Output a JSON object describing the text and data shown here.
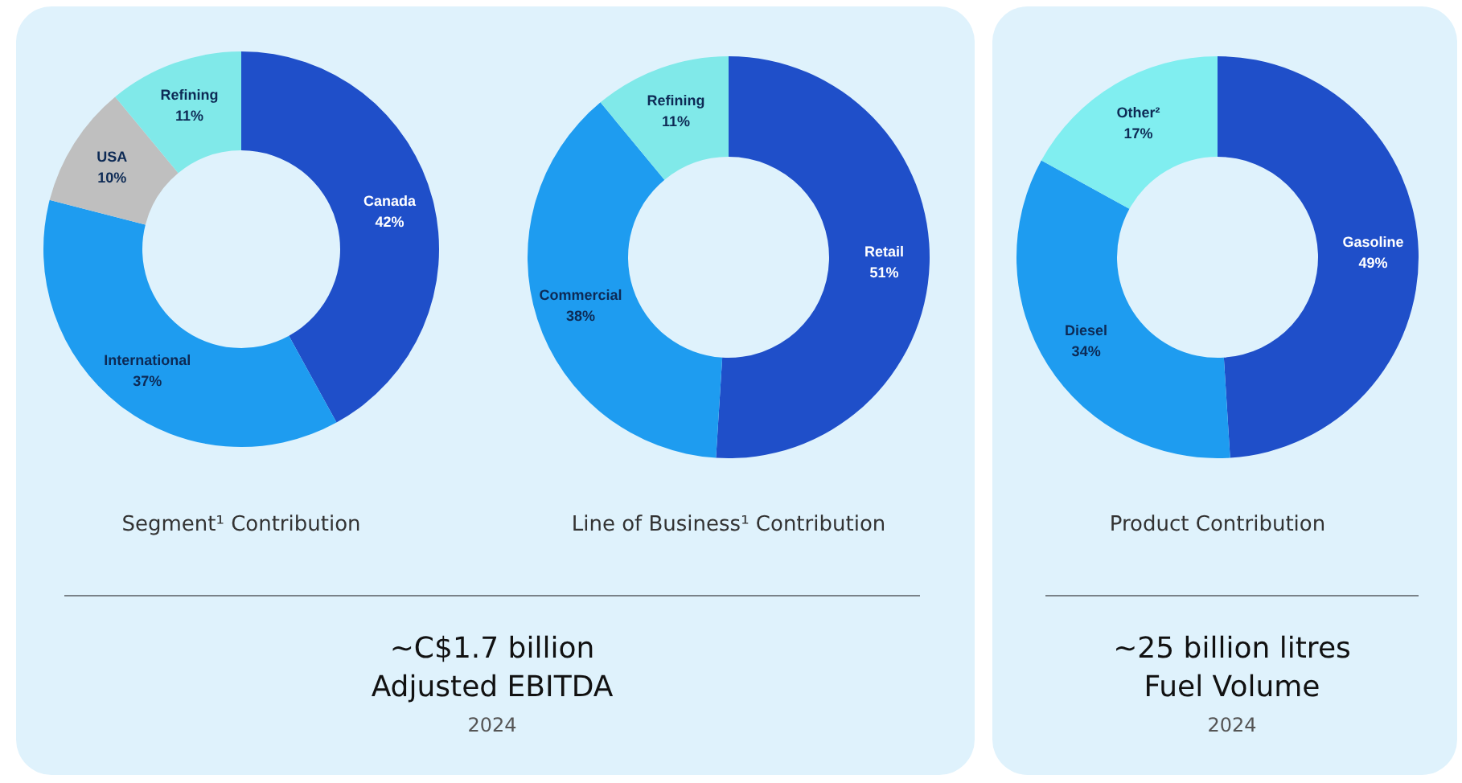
{
  "chart_data": [
    {
      "type": "donut",
      "title": "Segment¹ Contribution",
      "categories": [
        "Canada",
        "International",
        "USA",
        "Refining"
      ],
      "values": [
        42,
        37,
        10,
        11
      ],
      "colors": [
        "#1f4fc9",
        "#1e9cf0",
        "#bfbfbf",
        "#80e9e9"
      ],
      "value_labels": [
        "42%",
        "37%",
        "10%",
        "11%"
      ]
    },
    {
      "type": "donut",
      "title": "Line of Business¹ Contribution",
      "categories": [
        "Retail",
        "Commercial",
        "Refining"
      ],
      "values": [
        51,
        38,
        11
      ],
      "colors": [
        "#1f4fc9",
        "#1e9cf0",
        "#80e9e9"
      ],
      "value_labels": [
        "51%",
        "38%",
        "11%"
      ]
    },
    {
      "type": "other",
      "title": "~C$1.7 billion",
      "subtitle": "Adjusted EBITDA",
      "annotations": [
        "2024"
      ]
    },
    {
      "type": "donut",
      "title": "Product Contribution",
      "categories": [
        "Gasoline",
        "Diesel",
        "Other²"
      ],
      "values": [
        49,
        34,
        17
      ],
      "colors": [
        "#1f4fc9",
        "#1e9cf0",
        "#80eef0"
      ],
      "value_labels": [
        "49%",
        "34%",
        "17%"
      ]
    },
    {
      "type": "other",
      "title": "~25 billion litres",
      "subtitle": "Fuel Volume",
      "annotations": [
        "2024"
      ]
    }
  ]
}
